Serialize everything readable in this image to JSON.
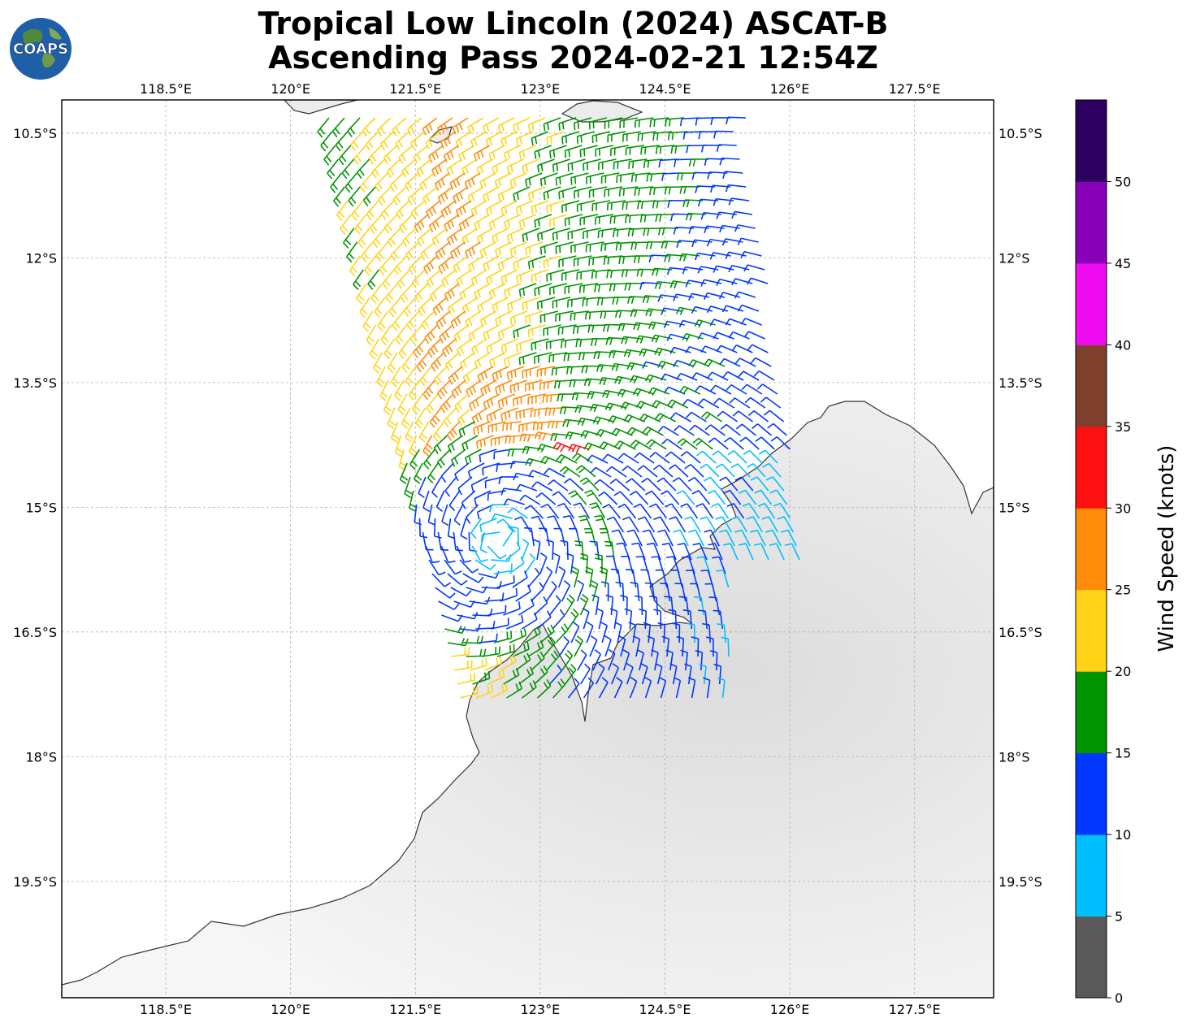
{
  "title": {
    "line1": "Tropical Low Lincoln (2024) ASCAT-B",
    "line2": "Ascending Pass 2024-02-21 12:54Z"
  },
  "logo": {
    "text": "COAPS",
    "icon": "globe-icon"
  },
  "map": {
    "lon_range": [
      117.25,
      128.45
    ],
    "lat_range": [
      -10.1,
      -20.9
    ],
    "lon_ticks": [
      "118.5°E",
      "120°E",
      "121.5°E",
      "123°E",
      "124.5°E",
      "126°E",
      "127.5°E"
    ],
    "lon_tick_values": [
      118.5,
      120,
      121.5,
      123,
      124.5,
      126,
      127.5
    ],
    "lat_ticks": [
      "10.5°S",
      "12°S",
      "13.5°S",
      "15°S",
      "16.5°S",
      "18°S",
      "19.5°S"
    ],
    "lat_tick_values": [
      -10.5,
      -12,
      -13.5,
      -15,
      -16.5,
      -18,
      -19.5
    ],
    "gridlines": true,
    "land_color": "#ececec",
    "coast_color": "#333333"
  },
  "storm": {
    "center_lon": 122.5,
    "center_lat": -15.4
  },
  "colorbar": {
    "label": "Wind Speed (knots)",
    "tick_labels": [
      "0",
      "5",
      "10",
      "15",
      "20",
      "25",
      "30",
      "35",
      "40",
      "45",
      "50"
    ],
    "bins": [
      {
        "min": 0,
        "max": 5,
        "color": "#595959"
      },
      {
        "min": 5,
        "max": 10,
        "color": "#00bfff"
      },
      {
        "min": 10,
        "max": 15,
        "color": "#0037ff"
      },
      {
        "min": 15,
        "max": 20,
        "color": "#009400"
      },
      {
        "min": 20,
        "max": 25,
        "color": "#ffd416"
      },
      {
        "min": 25,
        "max": 30,
        "color": "#ff8c0a"
      },
      {
        "min": 30,
        "max": 35,
        "color": "#ff1010"
      },
      {
        "min": 35,
        "max": 40,
        "color": "#7e3f2c"
      },
      {
        "min": 40,
        "max": 45,
        "color": "#f00cf0"
      },
      {
        "min": 45,
        "max": 50,
        "color": "#8800b8"
      },
      {
        "min": 50,
        "max": 55,
        "color": "#2d0061"
      }
    ]
  }
}
